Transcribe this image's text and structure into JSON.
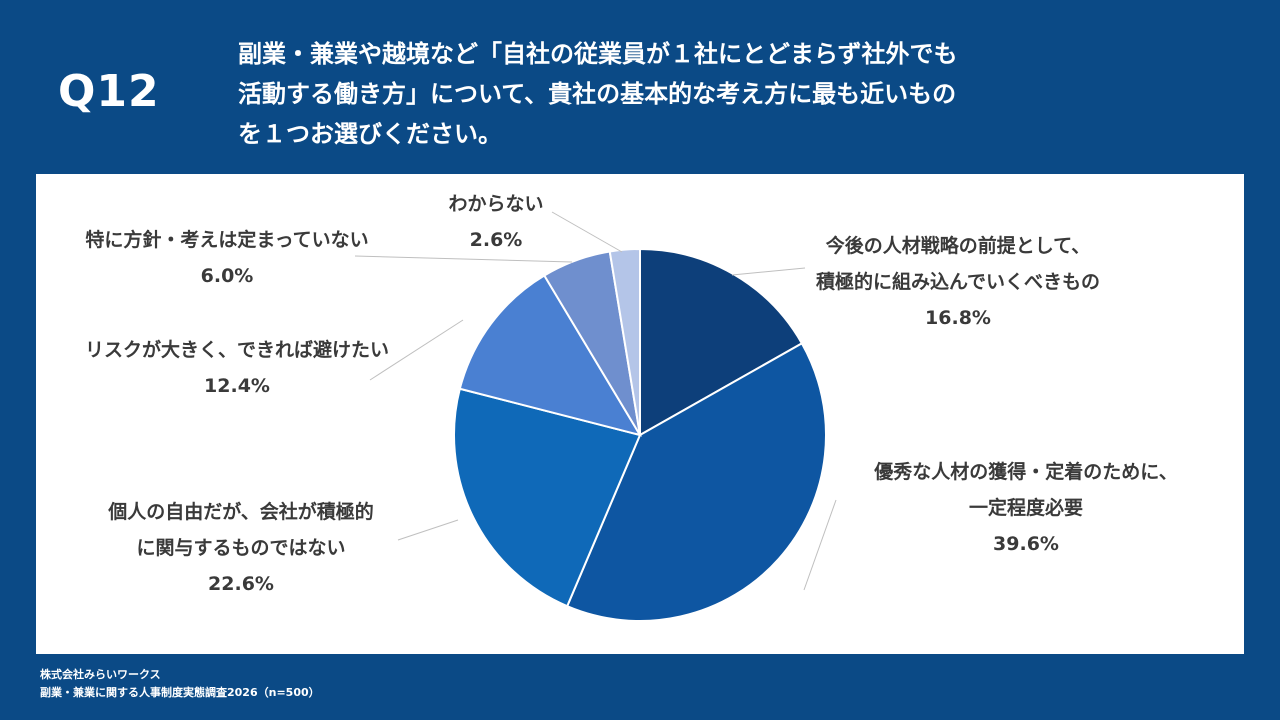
{
  "question": {
    "number": "Q12",
    "lines": [
      "副業・兼業や越境など「自社の従業員が１社にとどまらず社外でも",
      "活動する働き方」について、貴社の基本的な考え方に最も近いもの",
      "を１つお選びください。"
    ]
  },
  "footer": {
    "company": "株式会社みらいワークス",
    "survey": "副業・兼業に関する人事制度実態調査2026（n=500）"
  },
  "chart_data": {
    "type": "pie",
    "unit": "%",
    "slices": [
      {
        "label_lines": [
          "今後の人材戦略の前提として、",
          "積極的に組み込んでいくべきもの"
        ],
        "value": 16.8,
        "value_text": "16.8%",
        "color": "#0d3f7a"
      },
      {
        "label_lines": [
          "優秀な人材の獲得・定着のために、",
          "一定程度必要"
        ],
        "value": 39.6,
        "value_text": "39.6%",
        "color": "#0e56a2"
      },
      {
        "label_lines": [
          "個人の自由だが、会社が積極的",
          "に関与するものではない"
        ],
        "value": 22.6,
        "value_text": "22.6%",
        "color": "#0f69b8"
      },
      {
        "label_lines": [
          "リスクが大きく、できれば避けたい"
        ],
        "value": 12.4,
        "value_text": "12.4%",
        "color": "#4a80d2"
      },
      {
        "label_lines": [
          "特に方針・考えは定まっていない"
        ],
        "value": 6.0,
        "value_text": "6.0%",
        "color": "#6f8fce"
      },
      {
        "label_lines": [
          "わからない"
        ],
        "value": 2.6,
        "value_text": "2.6%",
        "color": "#b4c5e8"
      }
    ]
  }
}
